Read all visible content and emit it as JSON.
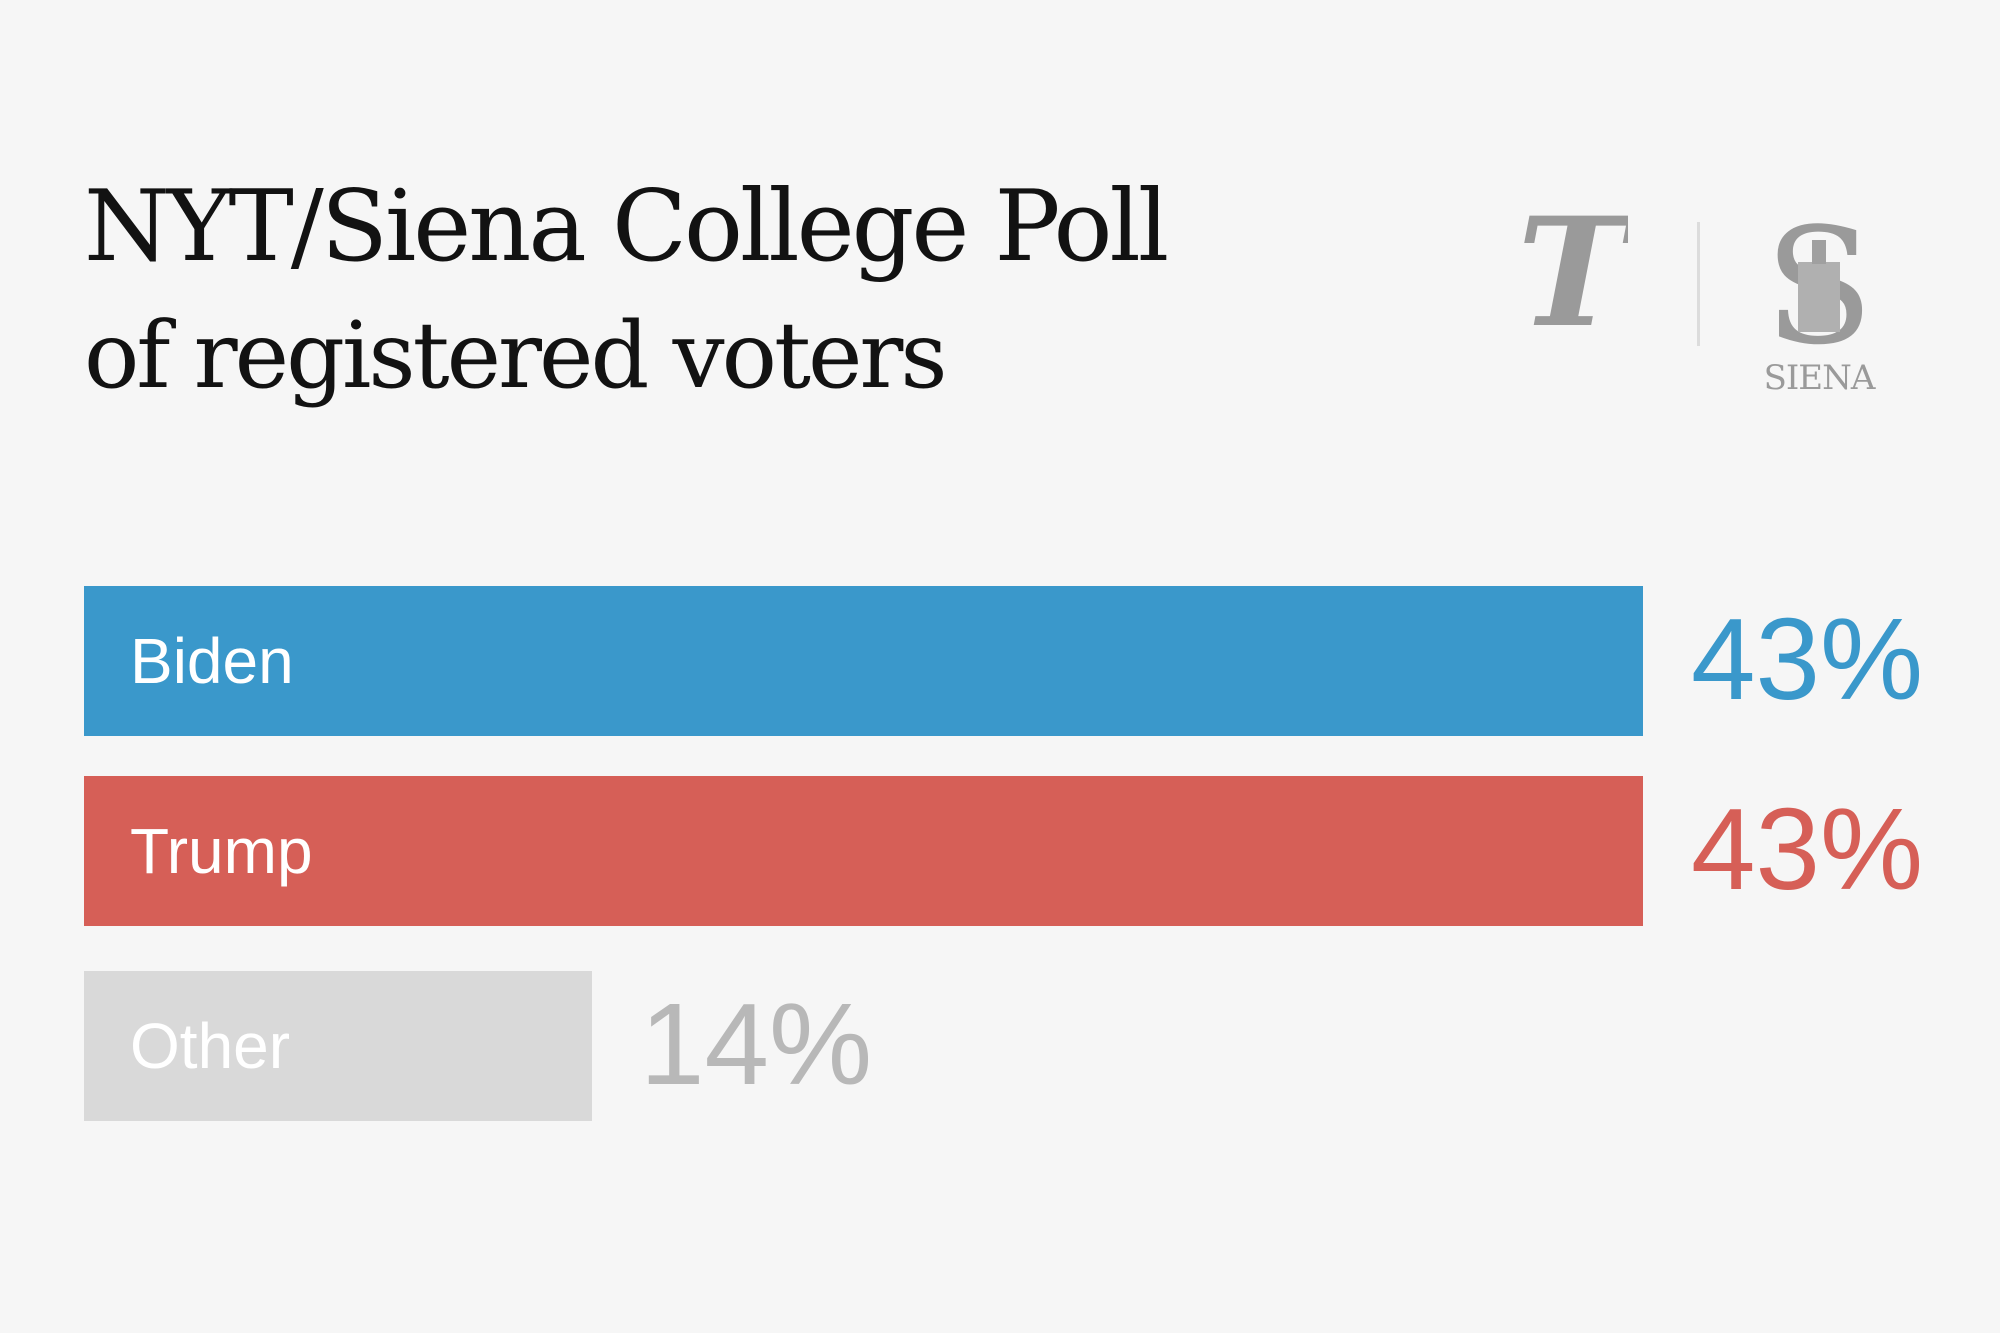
{
  "title": "NYT/Siena College Poll",
  "subtitle": "of registered voters",
  "logos": {
    "nyt": {
      "icon": "nyt-t-logo",
      "glyph": "T"
    },
    "siena": {
      "icon": "siena-s-logo",
      "glyph": "S",
      "text": "SIENA"
    }
  },
  "colors": {
    "background": "#f6f6f6",
    "biden": "#3a98cb",
    "trump": "#d65f57",
    "other_bar": "#d9d9d9",
    "other_value": "#b8b8b8",
    "logo": "#9a9a9a"
  },
  "chart_data": {
    "type": "bar",
    "orientation": "horizontal",
    "title": "NYT/Siena College Poll",
    "subtitle": "of registered voters",
    "categories": [
      "Biden",
      "Trump",
      "Other"
    ],
    "values": [
      43,
      43,
      14
    ],
    "value_labels": [
      "43%",
      "43%",
      "14%"
    ],
    "xlim": [
      0,
      43
    ],
    "grid": false,
    "legend": "none"
  }
}
